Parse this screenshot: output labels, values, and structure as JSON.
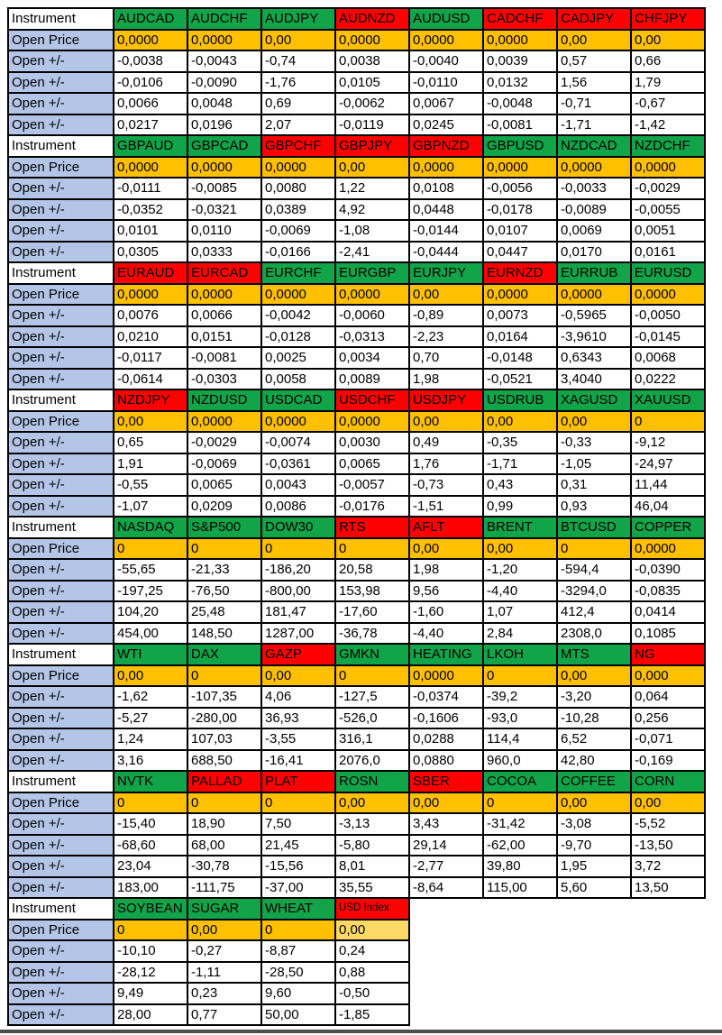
{
  "colors": {
    "green": "#12A449",
    "red": "#FF0000",
    "orange": "#FFC000",
    "orange_light": "#FFD966",
    "label_blue": "#B4C6E7",
    "border": "#000000",
    "bottom_bar": "#4D4D4D"
  },
  "table": {
    "row_labels": {
      "instrument": "Instrument",
      "open_price": "Open Price",
      "open_change": "Open +/-"
    },
    "full_column_count": 8,
    "blocks": [
      {
        "columns": [
          {
            "name": "AUDCAD",
            "color": "green",
            "open_price": "0,0000",
            "changes": [
              "-0,0038",
              "-0,0106",
              "0,0066",
              "0,0217"
            ]
          },
          {
            "name": "AUDCHF",
            "color": "green",
            "open_price": "0,0000",
            "changes": [
              "-0,0043",
              "-0,0090",
              "0,0048",
              "0,0196"
            ]
          },
          {
            "name": "AUDJPY",
            "color": "green",
            "open_price": "0,00",
            "changes": [
              "-0,74",
              "-1,76",
              "0,69",
              "2,07"
            ]
          },
          {
            "name": "AUDNZD",
            "color": "red",
            "open_price": "0,0000",
            "changes": [
              "0,0038",
              "0,0105",
              "-0,0062",
              "-0,0119"
            ]
          },
          {
            "name": "AUDUSD",
            "color": "green",
            "open_price": "0,0000",
            "changes": [
              "-0,0040",
              "-0,0110",
              "0,0067",
              "0,0245"
            ]
          },
          {
            "name": "CADCHF",
            "color": "red",
            "open_price": "0,0000",
            "changes": [
              "0,0039",
              "0,0132",
              "-0,0048",
              "-0,0081"
            ]
          },
          {
            "name": "CADJPY",
            "color": "red",
            "open_price": "0,00",
            "changes": [
              "0,57",
              "1,56",
              "-0,71",
              "-1,71"
            ]
          },
          {
            "name": "CHFJPY",
            "color": "red",
            "open_price": "0,00",
            "changes": [
              "0,66",
              "1,79",
              "-0,67",
              "-1,42"
            ]
          }
        ]
      },
      {
        "columns": [
          {
            "name": "GBPAUD",
            "color": "green",
            "open_price": "0,0000",
            "changes": [
              "-0,0111",
              "-0,0352",
              "0,0101",
              "0,0305"
            ]
          },
          {
            "name": "GBPCAD",
            "color": "green",
            "open_price": "0,0000",
            "changes": [
              "-0,0085",
              "-0,0321",
              "0,0110",
              "0,0333"
            ]
          },
          {
            "name": "GBPCHF",
            "color": "red",
            "open_price": "0,0000",
            "changes": [
              "0,0080",
              "0,0389",
              "-0,0069",
              "-0,0166"
            ]
          },
          {
            "name": "GBPJPY",
            "color": "red",
            "open_price": "0,00",
            "changes": [
              "1,22",
              "4,92",
              "-1,08",
              "-2,41"
            ]
          },
          {
            "name": "GBPNZD",
            "color": "red",
            "open_price": "0,0000",
            "changes": [
              "0,0108",
              "0,0448",
              "-0,0144",
              "-0,0444"
            ]
          },
          {
            "name": "GBPUSD",
            "color": "green",
            "open_price": "0,0000",
            "changes": [
              "-0,0056",
              "-0,0178",
              "0,0107",
              "0,0447"
            ]
          },
          {
            "name": "NZDCAD",
            "color": "green",
            "open_price": "0,0000",
            "changes": [
              "-0,0033",
              "-0,0089",
              "0,0069",
              "0,0170"
            ]
          },
          {
            "name": "NZDCHF",
            "color": "green",
            "open_price": "0,0000",
            "changes": [
              "-0,0029",
              "-0,0055",
              "0,0051",
              "0,0161"
            ]
          }
        ]
      },
      {
        "columns": [
          {
            "name": "EURAUD",
            "color": "red",
            "open_price": "0,0000",
            "changes": [
              "0,0076",
              "0,0210",
              "-0,0117",
              "-0,0614"
            ]
          },
          {
            "name": "EURCAD",
            "color": "red",
            "open_price": "0,0000",
            "changes": [
              "0,0066",
              "0,0151",
              "-0,0081",
              "-0,0303"
            ]
          },
          {
            "name": "EURCHF",
            "color": "green",
            "open_price": "0,0000",
            "changes": [
              "-0,0042",
              "-0,0128",
              "0,0025",
              "0,0058"
            ]
          },
          {
            "name": "EURGBP",
            "color": "green",
            "open_price": "0,0000",
            "changes": [
              "-0,0060",
              "-0,0313",
              "0,0034",
              "0,0089"
            ]
          },
          {
            "name": "EURJPY",
            "color": "green",
            "open_price": "0,00",
            "changes": [
              "-0,89",
              "-2,23",
              "0,70",
              "1,98"
            ]
          },
          {
            "name": "EURNZD",
            "color": "red",
            "open_price": "0,0000",
            "changes": [
              "0,0073",
              "0,0164",
              "-0,0148",
              "-0,0521"
            ]
          },
          {
            "name": "EURRUB",
            "color": "green",
            "open_price": "0,0000",
            "changes": [
              "-0,5965",
              "-3,9610",
              "0,6343",
              "3,4040"
            ]
          },
          {
            "name": "EURUSD",
            "color": "green",
            "open_price": "0,0000",
            "changes": [
              "-0,0050",
              "-0,0145",
              "0,0068",
              "0,0222"
            ]
          }
        ]
      },
      {
        "columns": [
          {
            "name": "NZDJPY",
            "color": "red",
            "open_price": "0,00",
            "changes": [
              "0,65",
              "1,91",
              "-0,55",
              "-1,07"
            ]
          },
          {
            "name": "NZDUSD",
            "color": "green",
            "open_price": "0,0000",
            "changes": [
              "-0,0029",
              "-0,0069",
              "0,0065",
              "0,0209"
            ]
          },
          {
            "name": "USDCAD",
            "color": "green",
            "open_price": "0,0000",
            "changes": [
              "-0,0074",
              "-0,0361",
              "0,0043",
              "0,0086"
            ]
          },
          {
            "name": "USDCHF",
            "color": "red",
            "open_price": "0,0000",
            "changes": [
              "0,0030",
              "0,0065",
              "-0,0057",
              "-0,0176"
            ]
          },
          {
            "name": "USDJPY",
            "color": "red",
            "open_price": "0,00",
            "changes": [
              "0,49",
              "1,76",
              "-0,73",
              "-1,51"
            ]
          },
          {
            "name": "USDRUB",
            "color": "green",
            "open_price": "0,00",
            "changes": [
              "-0,35",
              "-1,71",
              "0,43",
              "0,99"
            ]
          },
          {
            "name": "XAGUSD",
            "color": "green",
            "open_price": "0,00",
            "changes": [
              "-0,33",
              "-1,05",
              "0,31",
              "0,93"
            ]
          },
          {
            "name": "XAUUSD",
            "color": "green",
            "open_price": "0",
            "changes": [
              "-9,12",
              "-24,97",
              "11,44",
              "46,04"
            ]
          }
        ]
      },
      {
        "columns": [
          {
            "name": "NASDAQ",
            "color": "green",
            "open_price": "0",
            "changes": [
              "-55,65",
              "-197,25",
              "104,20",
              "454,00"
            ]
          },
          {
            "name": "S&P500",
            "color": "green",
            "open_price": "0",
            "changes": [
              "-21,33",
              "-76,50",
              "25,48",
              "148,50"
            ]
          },
          {
            "name": "DOW30",
            "color": "green",
            "open_price": "0",
            "changes": [
              "-186,20",
              "-800,00",
              "181,47",
              "1287,00"
            ]
          },
          {
            "name": "RTS",
            "color": "red",
            "open_price": "0",
            "changes": [
              "20,58",
              "153,98",
              "-17,60",
              "-36,78"
            ]
          },
          {
            "name": "AFLT",
            "color": "red",
            "open_price": "0,00",
            "changes": [
              "1,98",
              "9,56",
              "-1,60",
              "-4,40"
            ]
          },
          {
            "name": "BRENT",
            "color": "green",
            "open_price": "0,00",
            "changes": [
              "-1,20",
              "-4,40",
              "1,07",
              "2,84"
            ]
          },
          {
            "name": "BTCUSD",
            "color": "green",
            "open_price": "0",
            "changes": [
              "-594,4",
              "-3294,0",
              "412,4",
              "2308,0"
            ]
          },
          {
            "name": "COPPER",
            "color": "green",
            "open_price": "0,0000",
            "changes": [
              "-0,0390",
              "-0,0835",
              "0,0414",
              "0,1085"
            ]
          }
        ]
      },
      {
        "columns": [
          {
            "name": "WTI",
            "color": "green",
            "open_price": "0,00",
            "changes": [
              "-1,62",
              "-5,27",
              "1,24",
              "3,16"
            ]
          },
          {
            "name": "DAX",
            "color": "green",
            "open_price": "0",
            "changes": [
              "-107,35",
              "-280,00",
              "107,03",
              "688,50"
            ]
          },
          {
            "name": "GAZP",
            "color": "red",
            "open_price": "0,00",
            "changes": [
              "4,06",
              "36,93",
              "-3,55",
              "-16,41"
            ]
          },
          {
            "name": "GMKN",
            "color": "green",
            "open_price": "0",
            "changes": [
              "-127,5",
              "-526,0",
              "316,1",
              "2076,0"
            ]
          },
          {
            "name": "HEATING",
            "color": "green",
            "open_price": "0,0000",
            "changes": [
              "-0,0374",
              "-0,1606",
              "0,0288",
              "0,0880"
            ]
          },
          {
            "name": "LKOH",
            "color": "green",
            "open_price": "0",
            "changes": [
              "-39,2",
              "-93,0",
              "114,4",
              "960,0"
            ]
          },
          {
            "name": "MTS",
            "color": "green",
            "open_price": "0,00",
            "changes": [
              "-3,20",
              "-10,28",
              "6,52",
              "42,80"
            ]
          },
          {
            "name": "NG",
            "color": "red",
            "open_price": "0,000",
            "changes": [
              "0,064",
              "0,256",
              "-0,071",
              "-0,169"
            ]
          }
        ]
      },
      {
        "columns": [
          {
            "name": "NVTK",
            "color": "green",
            "open_price": "0",
            "changes": [
              "-15,40",
              "-68,60",
              "23,04",
              "183,00"
            ]
          },
          {
            "name": "PALLAD",
            "color": "red",
            "open_price": "0",
            "changes": [
              "18,90",
              "68,00",
              "-30,78",
              "-111,75"
            ]
          },
          {
            "name": "PLAT",
            "color": "red",
            "open_price": "0",
            "changes": [
              "7,50",
              "21,45",
              "-15,56",
              "-37,00"
            ]
          },
          {
            "name": "ROSN",
            "color": "green",
            "open_price": "0,00",
            "changes": [
              "-3,13",
              "-5,80",
              "8,01",
              "35,55"
            ]
          },
          {
            "name": "SBER",
            "color": "red",
            "open_price": "0,00",
            "changes": [
              "3,43",
              "29,14",
              "-2,77",
              "-8,64"
            ]
          },
          {
            "name": "COCOA",
            "color": "green",
            "open_price": "0",
            "changes": [
              "-31,42",
              "-62,00",
              "39,80",
              "115,00"
            ]
          },
          {
            "name": "COFFEE",
            "color": "green",
            "open_price": "0,00",
            "changes": [
              "-3,08",
              "-9,70",
              "1,95",
              "5,60"
            ]
          },
          {
            "name": "CORN",
            "color": "green",
            "open_price": "0,00",
            "changes": [
              "-5,52",
              "-13,50",
              "3,72",
              "13,50"
            ]
          }
        ]
      },
      {
        "columns": [
          {
            "name": "SOYBEAN",
            "color": "green",
            "open_price": "0",
            "changes": [
              "-10,10",
              "-28,12",
              "9,49",
              "28,00"
            ]
          },
          {
            "name": "SUGAR",
            "color": "green",
            "open_price": "0,00",
            "changes": [
              "-0,27",
              "-1,11",
              "0,23",
              "0,77"
            ]
          },
          {
            "name": "WHEAT",
            "color": "green",
            "open_price": "0",
            "changes": [
              "-8,87",
              "-28,50",
              "9,60",
              "50,00"
            ]
          },
          {
            "name": "USD Index",
            "color": "red",
            "open_price": "0,00",
            "changes": [
              "0,24",
              "0,88",
              "-0,50",
              "-1,85"
            ],
            "small_header": true,
            "price_light": true
          }
        ]
      }
    ]
  }
}
